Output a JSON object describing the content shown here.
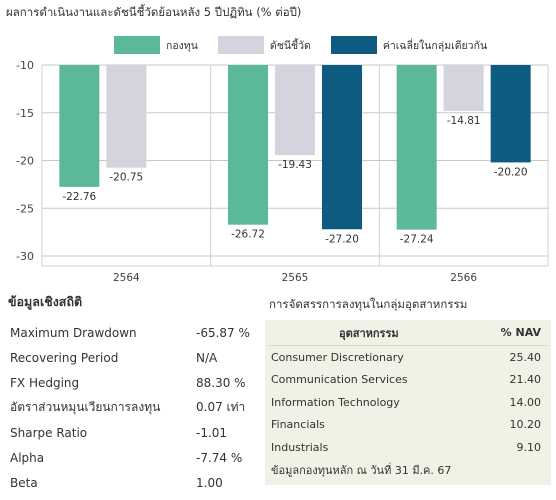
{
  "title": "ผลการดำเนินงานและดัชนีชี้วัดย้อนหลัง 5 ปีปฏิทิน (% ต่อปี)",
  "chart_data": {
    "type": "bar",
    "categories": [
      "2564",
      "2565",
      "2566"
    ],
    "series": [
      {
        "name": "กองทุน",
        "color": "#5bb99a",
        "values": [
          -22.76,
          -26.72,
          -27.24
        ]
      },
      {
        "name": "ดัชนีชี้วัด",
        "color": "#d3d4de",
        "values": [
          -20.75,
          -19.43,
          -14.81
        ]
      },
      {
        "name": "ค่าเฉลี่ยในกลุ่มเดียวกัน",
        "color": "#0e5b82",
        "values": [
          null,
          -27.2,
          -20.2
        ]
      }
    ],
    "value_labels": [
      [
        "-22.76",
        "-26.72",
        "-27.24"
      ],
      [
        "-20.75",
        "-19.43",
        "-14.81"
      ],
      [
        null,
        "-27.20",
        "-20.20"
      ]
    ],
    "ylim": [
      -30,
      -10
    ],
    "yticks": [
      "-10",
      "-15",
      "-20",
      "-25",
      "-30"
    ],
    "ytick_values": [
      -10,
      -15,
      -20,
      -25,
      -30
    ],
    "grid": true,
    "legend_position": "top"
  },
  "stats": {
    "title": "ข้อมูลเชิงสถิติ",
    "rows": [
      {
        "label": "Maximum Drawdown",
        "value": "-65.87 %"
      },
      {
        "label": "Recovering Period",
        "value": "N/A"
      },
      {
        "label": "FX Hedging",
        "value": "88.30 %"
      },
      {
        "label": "อัตราส่วนหมุนเวียนการลงทุน",
        "value": "0.07 เท่า"
      },
      {
        "label": "Sharpe Ratio",
        "value": "-1.01"
      },
      {
        "label": "Alpha",
        "value": "-7.74 %"
      },
      {
        "label": "Beta",
        "value": "1.00"
      }
    ]
  },
  "industry": {
    "title": "การจัดสรรการลงทุนในกลุ่มอุตสาหกรรม",
    "col_name": "อุตสาหกรรม",
    "col_value": "% NAV",
    "rows": [
      {
        "name": "Consumer Discretionary",
        "value": "25.40"
      },
      {
        "name": "Communication Services",
        "value": "21.40"
      },
      {
        "name": "Information Technology",
        "value": "14.00"
      },
      {
        "name": "Financials",
        "value": "10.20"
      },
      {
        "name": "Industrials",
        "value": "9.10"
      }
    ],
    "note": "ข้อมูลกองทุนหลัก ณ วันที่ 31 มี.ค. 67"
  }
}
